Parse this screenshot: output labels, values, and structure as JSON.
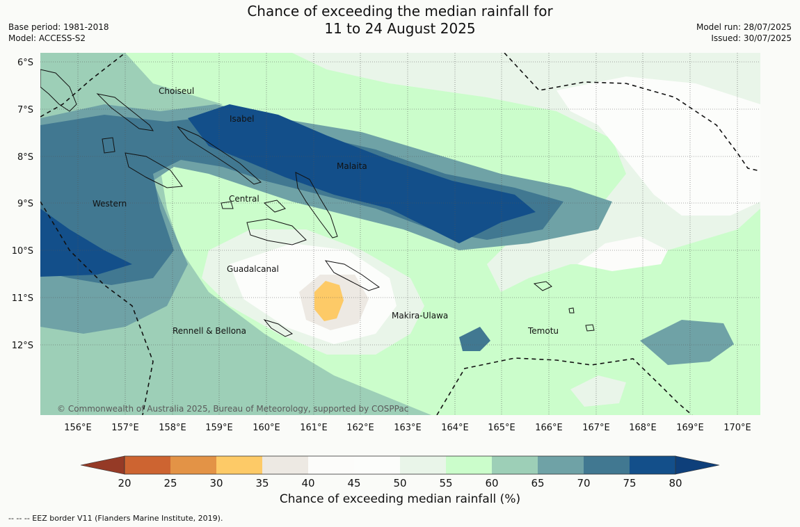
{
  "header": {
    "title_line1": "Chance of exceeding the median rainfall for",
    "title_line2": "11 to 24 August 2025",
    "base_period": "Base period: 1981-2018",
    "model": "Model: ACCESS-S2",
    "model_run": "Model run: 28/07/2025",
    "issued": "Issued: 30/07/2025"
  },
  "map": {
    "lat_labels": [
      "6°S",
      "7°S",
      "8°S",
      "9°S",
      "10°S",
      "11°S",
      "12°S"
    ],
    "lon_labels": [
      "156°E",
      "157°E",
      "158°E",
      "159°E",
      "160°E",
      "161°E",
      "162°E",
      "163°E",
      "164°E",
      "165°E",
      "166°E",
      "167°E",
      "168°E",
      "169°E",
      "170°E"
    ],
    "regions": [
      "Choiseul",
      "Isabel",
      "Malaita",
      "Western",
      "Central",
      "Guadalcanal",
      "Makira-Ulawa",
      "Rennell & Bellona",
      "Temotu"
    ],
    "copyright": "© Commonwealth of Australia 2025, Bureau of Meteorology, supported by COSPPac"
  },
  "colorbar": {
    "ticks": [
      "20",
      "25",
      "30",
      "35",
      "40",
      "45",
      "50",
      "55",
      "60",
      "65",
      "70",
      "75",
      "80"
    ],
    "colors": [
      "#b0452a",
      "#cd6431",
      "#e39346",
      "#fdca67",
      "#ede9e3",
      "#fcfcfa",
      "#fcfdfb",
      "#e9f5e9",
      "#cbfdcb",
      "#9dcfb7",
      "#6fa2a6",
      "#417891",
      "#134f8a"
    ],
    "under_color": "#953a26",
    "over_color": "#0e3f7a",
    "label": "Chance of exceeding median rainfall (%)"
  },
  "footnote": "--  --  -- EEZ border V11 (Flanders Marine Institute, 2019)."
}
